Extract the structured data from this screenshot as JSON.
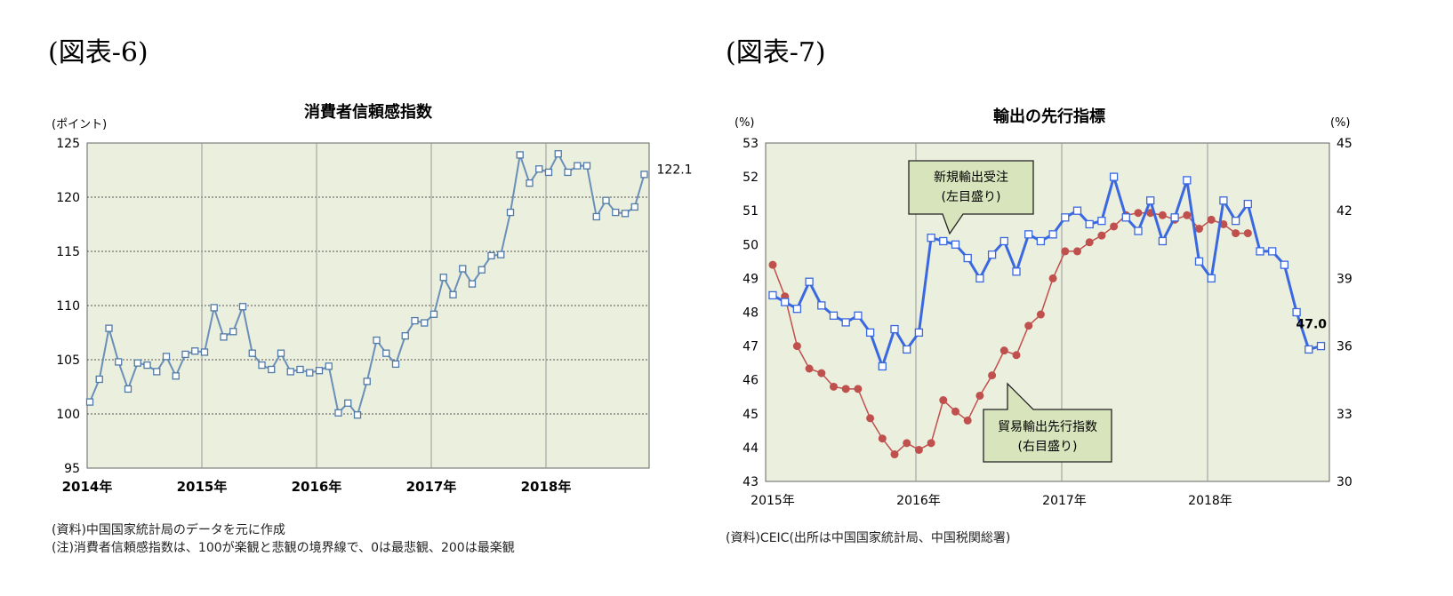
{
  "figures": [
    {
      "label": "(図表-6)",
      "chart": {
        "type": "line",
        "title": "消費者信頼感指数",
        "ylabel": "(ポイント)",
        "ylim": [
          95,
          125
        ],
        "yticks": [
          95,
          100,
          105,
          110,
          115,
          120,
          125
        ],
        "x_tick_labels": [
          "2014年",
          "2015年",
          "2016年",
          "2017年",
          "2018年"
        ],
        "x_start": "2014-01",
        "end_label": "122.1",
        "series": [
          {
            "values": [
              101.1,
              103.2,
              107.9,
              104.8,
              102.3,
              104.7,
              104.5,
              103.9,
              105.3,
              103.5,
              105.5,
              105.8,
              105.7,
              109.8,
              107.1,
              107.6,
              109.9,
              105.6,
              104.5,
              104.1,
              105.6,
              103.9,
              104.1,
              103.8,
              104.0,
              104.4,
              100.1,
              101.0,
              99.9,
              103.0,
              106.8,
              105.6,
              104.6,
              107.2,
              108.6,
              108.4,
              109.2,
              112.6,
              111.0,
              113.4,
              112.0,
              113.3,
              114.6,
              114.7,
              118.6,
              123.9,
              121.3,
              122.6,
              122.3,
              124.0,
              122.3,
              122.9,
              122.9,
              118.2,
              119.7,
              118.6,
              118.5,
              119.1,
              122.1
            ]
          }
        ],
        "notes": [
          "(資料)中国国家統計局のデータを元に作成",
          "(注)消費者信頼感指数は、100が楽観と悲観の境界線で、0は最悲観、200は最楽観"
        ],
        "colors": {
          "plot_bg": "#ebefde",
          "line": "#6a8fb8",
          "marker_edge": "#4f7aa8",
          "grid_h": "#555555",
          "grid_v": "#999999"
        }
      }
    },
    {
      "label": "(図表-7)",
      "chart": {
        "type": "line",
        "title": "輸出の先行指標",
        "ylabel_left": "(%)",
        "ylabel_right": "(%)",
        "ylim_left": [
          43,
          53
        ],
        "ylim_right": [
          30,
          45
        ],
        "yticks_left": [
          43,
          44,
          45,
          46,
          47,
          48,
          49,
          50,
          51,
          52,
          53
        ],
        "yticks_right": [
          30,
          33,
          36,
          39,
          42,
          45
        ],
        "x_tick_labels": [
          "2015年",
          "2016年",
          "2017年",
          "2018年"
        ],
        "x_start": "2015-01",
        "end_label": "47.0",
        "series": [
          {
            "name": "新規輸出受注",
            "axis": "left",
            "values": [
              48.5,
              48.3,
              48.1,
              48.9,
              48.2,
              47.9,
              47.7,
              47.9,
              47.4,
              46.4,
              47.5,
              46.9,
              47.4,
              50.2,
              50.1,
              50.0,
              49.6,
              49.0,
              49.7,
              50.1,
              49.2,
              50.3,
              50.1,
              50.3,
              50.8,
              51.0,
              50.6,
              50.7,
              52.0,
              50.8,
              50.4,
              51.3,
              50.1,
              50.8,
              51.9,
              49.5,
              49.0,
              51.3,
              50.7,
              51.2,
              49.8,
              49.8,
              49.4,
              48.0,
              46.9,
              47.0
            ]
          },
          {
            "name": "貿易輸出先行指数",
            "axis": "right",
            "values": [
              39.6,
              38.2,
              36.0,
              35.0,
              34.8,
              34.2,
              34.1,
              34.1,
              32.8,
              31.9,
              31.2,
              31.7,
              31.4,
              31.7,
              33.6,
              33.1,
              32.7,
              33.8,
              34.7,
              35.8,
              35.6,
              36.9,
              37.4,
              39.0,
              40.2,
              40.2,
              40.6,
              40.9,
              41.3,
              41.8,
              41.9,
              41.9,
              41.8,
              41.6,
              41.8,
              41.2,
              41.6,
              41.4,
              41.0,
              41.0
            ]
          }
        ],
        "callouts": {
          "orders": {
            "line1": "新規輸出受注",
            "line2": "(左目盛り)"
          },
          "leading": {
            "line1": "貿易輸出先行指数",
            "line2": "(右目盛り)"
          }
        },
        "notes": [
          "(資料)CEIC(出所は中国国家統計局、中国税関総署)"
        ],
        "colors": {
          "plot_bg": "#ebefde",
          "orders": "#3a68e0",
          "leading": "#c0504d",
          "grid_v": "#999999",
          "callout_bg": "#d8e4bc"
        }
      }
    }
  ]
}
